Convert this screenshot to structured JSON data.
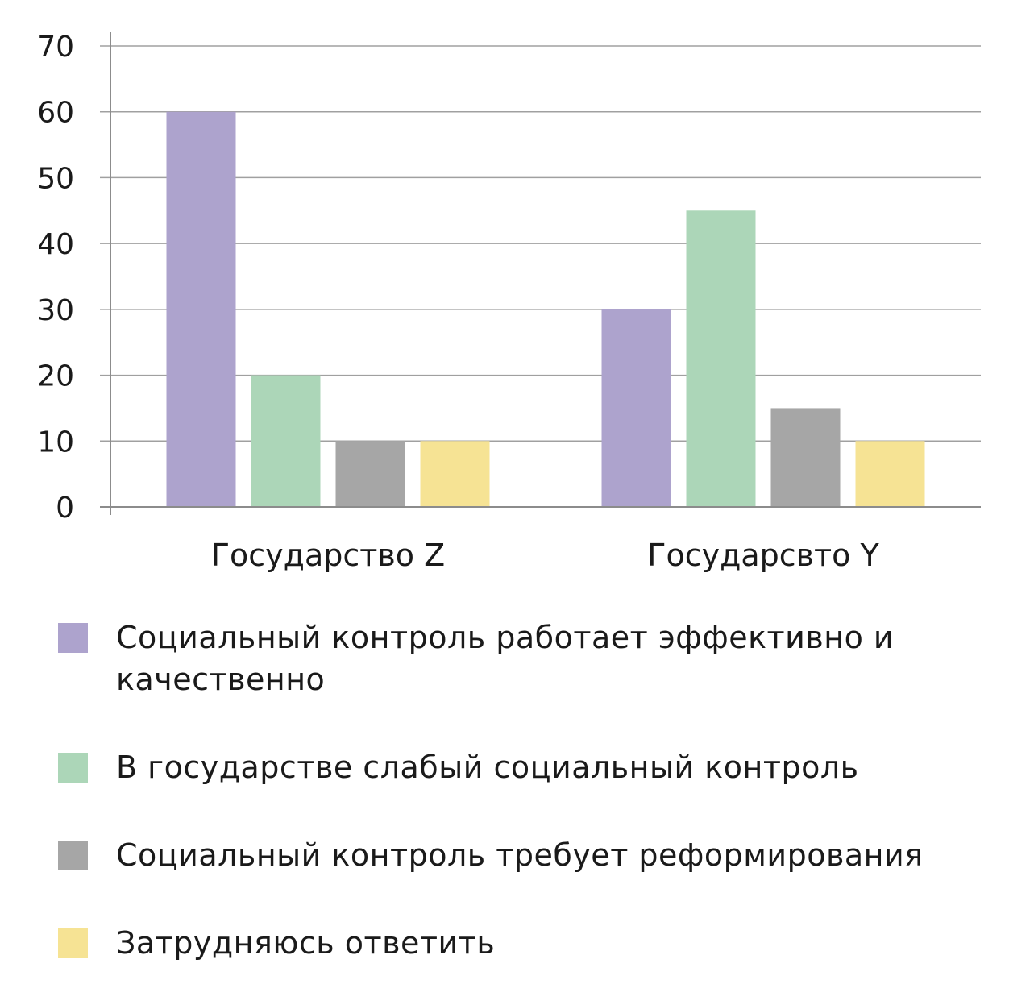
{
  "chart_data": {
    "type": "bar",
    "categories": [
      "Государство Z",
      "Государсвто Y"
    ],
    "series": [
      {
        "name": "Социальный контроль работает эффективно и качественно",
        "values": [
          60,
          30
        ],
        "color": "#ada3cd"
      },
      {
        "name": "В государстве слабый социальный контроль",
        "values": [
          20,
          45
        ],
        "color": "#acd6b8"
      },
      {
        "name": "Социальный контроль требует реформирования",
        "values": [
          10,
          15
        ],
        "color": "#a6a6a6"
      },
      {
        "name": "Затрудняюсь ответить",
        "values": [
          10,
          10
        ],
        "color": "#f6e394"
      }
    ],
    "ylim": [
      0,
      70
    ],
    "yticks": [
      "0",
      "10",
      "20",
      "30",
      "40",
      "50",
      "60",
      "70"
    ],
    "grid": true,
    "legend_position": "bottom",
    "title": "",
    "xlabel": "",
    "ylabel": ""
  },
  "legend": {
    "items": [
      {
        "label": "Социальный контроль работает эффективно и качественно",
        "color": "#ada3cd"
      },
      {
        "label": "В государстве слабый социальный контроль",
        "color": "#acd6b8"
      },
      {
        "label": "Социальный контроль требует реформирования",
        "color": "#a6a6a6"
      },
      {
        "label": "Затрудняюсь ответить",
        "color": "#f6e394"
      }
    ]
  }
}
